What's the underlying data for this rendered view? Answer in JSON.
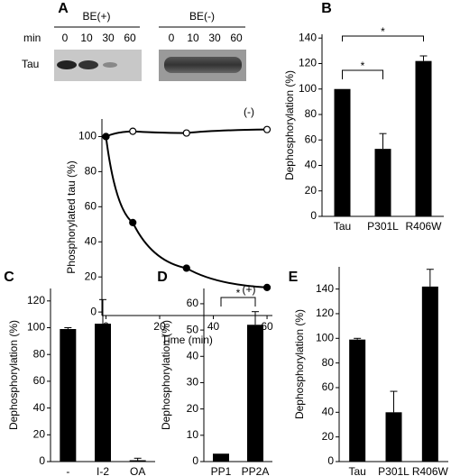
{
  "chart_data": [
    {
      "type": "line",
      "panel": "A",
      "blot_labels": {
        "plus": "BE(+)",
        "minus": "BE(-)",
        "min": "min",
        "lanes": [
          "0",
          "10",
          "30",
          "60"
        ],
        "protein": "Tau"
      },
      "xlabel": "Time (min)",
      "ylabel": "Phosphorylated tau (%)",
      "xlim": [
        -1.5,
        62
      ],
      "ylim": [
        -2,
        110
      ],
      "xticks": [
        0,
        20,
        40,
        60
      ],
      "yticks": [
        0,
        20,
        40,
        60,
        80,
        100
      ],
      "annotations": [
        "(-)",
        "(+)"
      ],
      "series": [
        {
          "name": "(-)",
          "color": "#000000",
          "marker": "open",
          "x": [
            0,
            10,
            30,
            60
          ],
          "values": [
            100,
            103,
            102,
            104
          ]
        },
        {
          "name": "(+)",
          "color": "#000000",
          "marker": "filled",
          "x": [
            0,
            10,
            30,
            60
          ],
          "values": [
            100,
            51,
            25,
            14
          ]
        }
      ]
    },
    {
      "type": "bar",
      "panel": "B",
      "ylabel": "Dephosphorylation (%)",
      "categories": [
        "Tau",
        "P301L",
        "R406W"
      ],
      "values": [
        100,
        53,
        122
      ],
      "errors": [
        0,
        12,
        4
      ],
      "color": "#000000",
      "ylim": [
        0,
        143
      ],
      "yticks": [
        0,
        20,
        40,
        60,
        80,
        100,
        120,
        140
      ],
      "significance": [
        {
          "text": "*",
          "pair": [
            0,
            1
          ]
        },
        {
          "text": "*",
          "pair": [
            0,
            2
          ]
        }
      ]
    },
    {
      "type": "bar",
      "panel": "C",
      "ylabel": "Dephosphorylation (%)",
      "categories": [
        "-",
        "I-2",
        "OA"
      ],
      "values": [
        99,
        103,
        1
      ],
      "errors": [
        1,
        18,
        1.5
      ],
      "color": "#000000",
      "ylim": [
        0,
        129.3
      ],
      "yticks": [
        0,
        20,
        40,
        60,
        80,
        100,
        120
      ]
    },
    {
      "type": "bar",
      "panel": "D",
      "ylabel": "Dephosphorylation (%)",
      "categories": [
        "PP1",
        "PP2A"
      ],
      "values": [
        3,
        52
      ],
      "errors": [
        0,
        5
      ],
      "color": "#000000",
      "ylim": [
        0,
        65.8
      ],
      "yticks": [
        0,
        10,
        20,
        30,
        40,
        50,
        60
      ],
      "significance": [
        {
          "text": "*",
          "pair": [
            0,
            1
          ]
        }
      ]
    },
    {
      "type": "bar",
      "panel": "E",
      "ylabel": "Dephosphorylation (%)",
      "categories": [
        "Tau",
        "P301L",
        "R406W"
      ],
      "values": [
        99,
        40,
        142
      ],
      "errors": [
        1,
        17,
        14
      ],
      "color": "#000000",
      "ylim": [
        0,
        158
      ],
      "yticks": [
        0,
        20,
        40,
        60,
        80,
        100,
        120,
        140
      ]
    }
  ]
}
